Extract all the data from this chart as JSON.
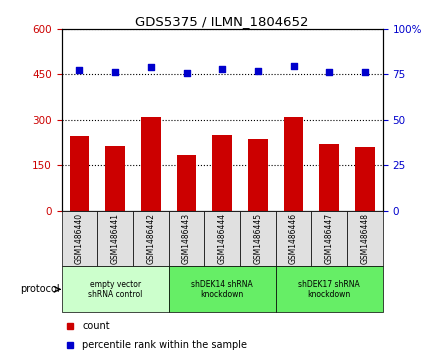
{
  "title": "GDS5375 / ILMN_1804652",
  "samples": [
    "GSM1486440",
    "GSM1486441",
    "GSM1486442",
    "GSM1486443",
    "GSM1486444",
    "GSM1486445",
    "GSM1486446",
    "GSM1486447",
    "GSM1486448"
  ],
  "counts": [
    245,
    215,
    310,
    185,
    250,
    235,
    308,
    220,
    210
  ],
  "percentile_ranks": [
    77.5,
    76.5,
    79.0,
    76.0,
    78.0,
    77.0,
    79.5,
    76.5,
    76.5
  ],
  "bar_color": "#cc0000",
  "dot_color": "#0000cc",
  "ylim_left": [
    0,
    600
  ],
  "ylim_right": [
    0,
    100
  ],
  "yticks_left": [
    0,
    150,
    300,
    450,
    600
  ],
  "yticks_right": [
    0,
    25,
    50,
    75,
    100
  ],
  "groups": [
    {
      "label": "empty vector\nshRNA control",
      "start": 0,
      "end": 3,
      "color": "#ccffcc"
    },
    {
      "label": "shDEK14 shRNA\nknockdown",
      "start": 3,
      "end": 6,
      "color": "#66ee66"
    },
    {
      "label": "shDEK17 shRNA\nknockdown",
      "start": 6,
      "end": 9,
      "color": "#66ee66"
    }
  ],
  "protocol_label": "protocol",
  "legend_count_label": "count",
  "legend_pct_label": "percentile rank within the sample",
  "bar_color_legend": "#cc0000",
  "dot_color_legend": "#0000cc",
  "grid_style": "dotted",
  "background_color": "white",
  "tick_label_color_left": "#cc0000",
  "tick_label_color_right": "#0000cc",
  "sample_cell_color": "#e0e0e0",
  "figsize": [
    4.4,
    3.63
  ],
  "dpi": 100
}
